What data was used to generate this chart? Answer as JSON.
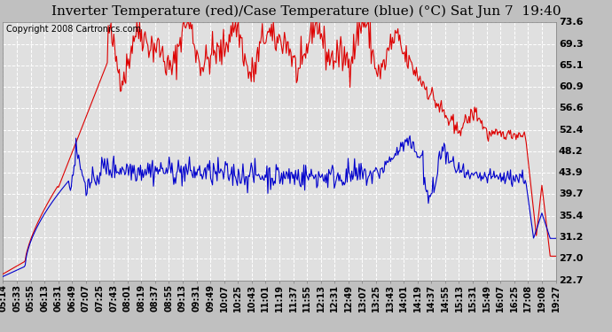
{
  "title": "Inverter Temperature (red)/Case Temperature (blue) (°C) Sat Jun 7  19:40",
  "copyright": "Copyright 2008 Cartronics.com",
  "yticks": [
    22.7,
    27.0,
    31.2,
    35.4,
    39.7,
    43.9,
    48.2,
    52.4,
    56.6,
    60.9,
    65.1,
    69.3,
    73.6
  ],
  "ylim": [
    22.7,
    73.6
  ],
  "xtick_labels": [
    "05:14",
    "05:33",
    "05:55",
    "06:13",
    "06:31",
    "06:49",
    "07:07",
    "07:25",
    "07:43",
    "08:01",
    "08:19",
    "08:37",
    "08:55",
    "09:13",
    "09:31",
    "09:49",
    "10:07",
    "10:25",
    "10:43",
    "11:01",
    "11:19",
    "11:37",
    "11:55",
    "12:13",
    "12:31",
    "12:49",
    "13:07",
    "13:25",
    "13:43",
    "14:01",
    "14:19",
    "14:37",
    "14:55",
    "15:13",
    "15:31",
    "15:49",
    "16:07",
    "16:25",
    "17:08",
    "19:08",
    "19:27"
  ],
  "bg_color": "#c0c0c0",
  "title_bg_color": "#e8e8e8",
  "plot_bg_color": "#e0e0e0",
  "grid_color": "#ffffff",
  "red_color": "#dd0000",
  "blue_color": "#0000cc",
  "title_fontsize": 11,
  "copyright_fontsize": 7,
  "tick_label_fontsize": 7,
  "ytick_fontsize": 8
}
